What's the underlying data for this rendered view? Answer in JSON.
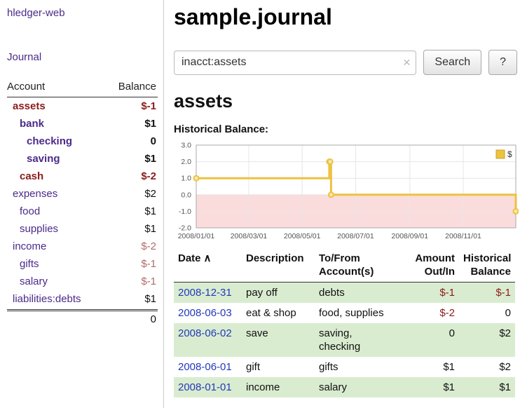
{
  "app": {
    "title": "hledger-web"
  },
  "nav": {
    "journal": "Journal"
  },
  "sidebar": {
    "header": {
      "account": "Account",
      "balance": "Balance"
    },
    "accounts": [
      {
        "name": "assets",
        "depth": 0,
        "bold": true,
        "name_red": true,
        "balance": "$-1",
        "balance_neg": true
      },
      {
        "name": "bank",
        "depth": 1,
        "bold": true,
        "name_red": false,
        "balance": "$1",
        "balance_neg": false
      },
      {
        "name": "checking",
        "depth": 2,
        "bold": true,
        "name_red": false,
        "balance": "0",
        "balance_neg": false
      },
      {
        "name": "saving",
        "depth": 2,
        "bold": true,
        "name_red": false,
        "balance": "$1",
        "balance_neg": false
      },
      {
        "name": "cash",
        "depth": 1,
        "bold": true,
        "name_red": true,
        "balance": "$-2",
        "balance_neg": true
      },
      {
        "name": "expenses",
        "depth": 0,
        "bold": false,
        "name_red": false,
        "balance": "$2",
        "balance_neg": false
      },
      {
        "name": "food",
        "depth": 1,
        "bold": false,
        "name_red": false,
        "balance": "$1",
        "balance_neg": false
      },
      {
        "name": "supplies",
        "depth": 1,
        "bold": false,
        "name_red": false,
        "balance": "$1",
        "balance_neg": false
      },
      {
        "name": "income",
        "depth": 0,
        "bold": false,
        "name_red": false,
        "balance": "$-2",
        "balance_neg": true
      },
      {
        "name": "gifts",
        "depth": 1,
        "bold": false,
        "name_red": false,
        "balance": "$-1",
        "balance_neg": true
      },
      {
        "name": "salary",
        "depth": 1,
        "bold": false,
        "name_red": false,
        "balance": "$-1",
        "balance_neg": true
      },
      {
        "name": "liabilities:debts",
        "depth": 0,
        "bold": false,
        "name_red": false,
        "balance": "$1",
        "balance_neg": false
      }
    ],
    "total": "0"
  },
  "main": {
    "title": "sample.journal",
    "search": {
      "value": "inacct:assets",
      "clear_icon": "✕",
      "button": "Search",
      "help_button": "?"
    },
    "account_heading": "assets",
    "chart_label": "Historical Balance:",
    "table": {
      "sort_icon": "∧",
      "headers": {
        "date": "Date",
        "description": "Description",
        "tofrom": "To/From Account(s)",
        "amount": "Amount Out/In",
        "historical": "Historical Balance"
      },
      "rows": [
        {
          "date": "2008-12-31",
          "description": "pay off",
          "accounts": "debts",
          "amount": "$-1",
          "historical": "$-1"
        },
        {
          "date": "2008-06-03",
          "description": "eat & shop",
          "accounts": "food, supplies",
          "amount": "$-2",
          "historical": "0"
        },
        {
          "date": "2008-06-02",
          "description": "save",
          "accounts": "saving,\nchecking",
          "amount": "0",
          "historical": "$2"
        },
        {
          "date": "2008-06-01",
          "description": "gift",
          "accounts": "gifts",
          "amount": "$1",
          "historical": "$2"
        },
        {
          "date": "2008-01-01",
          "description": "income",
          "accounts": "salary",
          "amount": "$1",
          "historical": "$1"
        }
      ]
    }
  },
  "chart_data": {
    "type": "line",
    "title": "Historical Balance:",
    "step": true,
    "series": [
      {
        "name": "$",
        "points": [
          [
            "2008/01/01",
            1
          ],
          [
            "2008/06/01",
            2
          ],
          [
            "2008/06/02",
            2
          ],
          [
            "2008/06/03",
            0
          ],
          [
            "2008/12/31",
            -1
          ]
        ]
      }
    ],
    "ylim": [
      -2,
      3
    ],
    "yticks": [
      3.0,
      2.0,
      1.0,
      0.0,
      -1.0,
      -2.0
    ],
    "ytick_labels": [
      "3.0",
      "2.0",
      "1.0",
      "0.0",
      "-1.0",
      "-2.0"
    ],
    "xticks": [
      "2008/01/01",
      "2008/03/01",
      "2008/05/01",
      "2008/07/01",
      "2008/09/01",
      "2008/11/01"
    ],
    "legend": {
      "label": "$",
      "position": "top-right"
    },
    "negative_region_shaded": true,
    "grid": true
  },
  "colors": {
    "link_purple": "#4b2a8a",
    "date_blue": "#2438bd",
    "neg_strong": "#8b1c1c",
    "neg_light": "#b26b6b",
    "row_green": "#d9ecd0",
    "divider": "#cccccc",
    "rule": "#333333",
    "chart_line": "#edc240",
    "chart_marker_fill": "#f7e8b0",
    "chart_negative_fill": "#fbdcdc",
    "chart_grid": "#e6e6e6",
    "chart_border": "#aaaaaa",
    "chart_axis_text": "#545454",
    "chart_legend_border": "#c9a227"
  }
}
